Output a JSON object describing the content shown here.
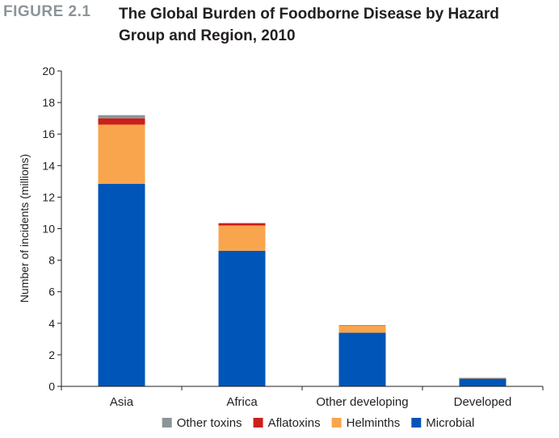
{
  "figure": {
    "label": "FIGURE 2.1",
    "title": "The Global Burden of Foodborne Disease by Hazard Group and Region, 2010"
  },
  "chart_data": {
    "type": "bar",
    "stacked": true,
    "categories": [
      "Asia",
      "Africa",
      "Other developing",
      "Developed"
    ],
    "series": [
      {
        "name": "Microbial",
        "color": "#0055b8",
        "values": [
          12.85,
          8.6,
          3.4,
          0.5
        ]
      },
      {
        "name": "Helminths",
        "color": "#f9a54d",
        "values": [
          3.75,
          1.6,
          0.45,
          0.05
        ]
      },
      {
        "name": "Aflatoxins",
        "color": "#cc1f1a",
        "values": [
          0.4,
          0.15,
          0.03,
          0.0
        ]
      },
      {
        "name": "Other toxins",
        "color": "#8c9598",
        "values": [
          0.2,
          0.0,
          0.0,
          0.0
        ]
      }
    ],
    "legend_order": [
      "Other toxins",
      "Aflatoxins",
      "Helminths",
      "Microbial"
    ],
    "ylabel": "Number of incidents (millions)",
    "xlabel": "",
    "ylim": [
      0,
      20
    ],
    "yticks": [
      0,
      2,
      4,
      6,
      8,
      10,
      12,
      14,
      16,
      18,
      20
    ],
    "grid": false,
    "legend_position": "bottom"
  }
}
